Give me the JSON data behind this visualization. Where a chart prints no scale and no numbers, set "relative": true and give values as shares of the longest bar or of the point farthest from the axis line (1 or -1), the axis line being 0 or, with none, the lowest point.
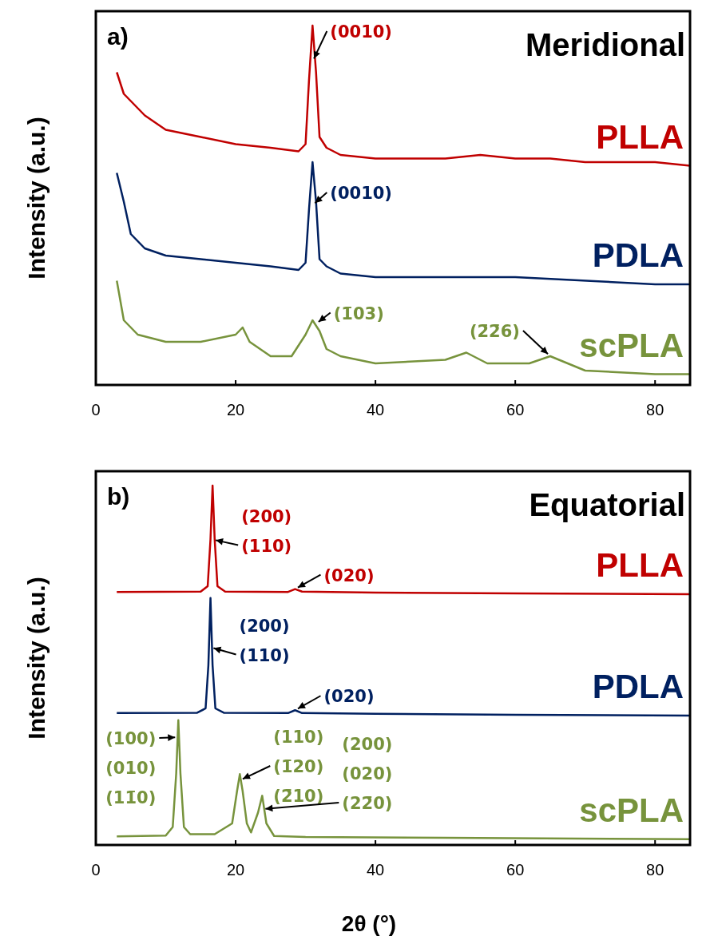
{
  "chart_data": [
    {
      "type": "line",
      "title": "Meridional",
      "ylabel": "Intensity (a.u.)",
      "relative": true,
      "xlim": [
        0,
        85
      ],
      "xticks": [
        0,
        20,
        40,
        60,
        80
      ],
      "legend": false,
      "grid": false,
      "annotations": [
        "a)",
        {
          "text": "(0010)",
          "x": 31,
          "y": 0.9
        },
        {
          "text": "(0010)",
          "x": 31,
          "y": 0.5
        },
        {
          "text": "(1̄03)",
          "x": 31.5,
          "y": 0.17
        },
        {
          "text": "(2̄2̄6)",
          "x": 65,
          "y": 0.08
        }
      ],
      "series": [
        {
          "name": "PLLA",
          "color": "#c00000",
          "x": [
            3,
            4,
            5,
            7,
            10,
            15,
            20,
            25,
            29,
            30,
            30.5,
            31,
            31.5,
            32,
            33,
            35,
            40,
            50,
            55,
            60,
            65,
            70,
            80,
            85
          ],
          "values": [
            0.87,
            0.81,
            0.79,
            0.75,
            0.71,
            0.69,
            0.67,
            0.66,
            0.65,
            0.67,
            0.85,
            1.0,
            0.87,
            0.69,
            0.66,
            0.64,
            0.63,
            0.63,
            0.64,
            0.63,
            0.63,
            0.62,
            0.62,
            0.61
          ]
        },
        {
          "name": "PDLA",
          "color": "#002060",
          "x": [
            3,
            4,
            5,
            7,
            10,
            15,
            20,
            25,
            29,
            30,
            30.5,
            31,
            31.5,
            32,
            33,
            35,
            40,
            60,
            80,
            85
          ],
          "values": [
            0.59,
            0.51,
            0.42,
            0.38,
            0.36,
            0.35,
            0.34,
            0.33,
            0.32,
            0.34,
            0.49,
            0.62,
            0.51,
            0.35,
            0.33,
            0.31,
            0.3,
            0.3,
            0.28,
            0.28
          ]
        },
        {
          "name": "scPLA",
          "color": "#77933c",
          "x": [
            3,
            4,
            6,
            10,
            15,
            20,
            21,
            22,
            25,
            28,
            30,
            31,
            32,
            33,
            35,
            40,
            50,
            53,
            56,
            62,
            65,
            70,
            80,
            85
          ],
          "values": [
            0.29,
            0.18,
            0.14,
            0.12,
            0.12,
            0.14,
            0.16,
            0.12,
            0.08,
            0.08,
            0.14,
            0.18,
            0.15,
            0.1,
            0.08,
            0.06,
            0.07,
            0.09,
            0.06,
            0.06,
            0.08,
            0.04,
            0.03,
            0.03
          ]
        }
      ]
    },
    {
      "type": "line",
      "title": "Equatorial",
      "xlabel": "2θ (°)",
      "ylabel": "Intensity (a.u.)",
      "relative": true,
      "xlim": [
        0,
        85
      ],
      "xticks": [
        0,
        20,
        40,
        60,
        80
      ],
      "legend": false,
      "grid": false,
      "annotations": [
        "b)",
        {
          "text": "(200)\n(110)",
          "x": 16.7,
          "y": 0.85
        },
        {
          "text": "(020)",
          "x": 28.5,
          "y": 0.712
        },
        {
          "text": "(200)\n(110)",
          "x": 16.4,
          "y": 0.55
        },
        {
          "text": "(020)",
          "x": 28.5,
          "y": 0.375
        },
        {
          "text": "(100)\n(010)\n(11̄0)",
          "x": 11.8,
          "y": 0.3
        },
        {
          "text": "(110)\n(1̄20)\n(2̄10)",
          "x": 20.6,
          "y": 0.18
        },
        {
          "text": "(200)\n(020)\n(22̄0)",
          "x": 23.8,
          "y": 0.1
        }
      ],
      "series": [
        {
          "name": "PLLA",
          "color": "#c00000",
          "x": [
            3,
            15,
            16,
            16.4,
            16.7,
            17,
            17.4,
            18.5,
            27.5,
            28.5,
            29.5,
            40,
            60,
            85
          ],
          "values": [
            0.704,
            0.705,
            0.72,
            0.85,
            1.0,
            0.85,
            0.72,
            0.705,
            0.704,
            0.712,
            0.705,
            0.702,
            0.7,
            0.698
          ]
        },
        {
          "name": "PDLA",
          "color": "#002060",
          "x": [
            3,
            14.5,
            15.7,
            16.1,
            16.4,
            16.7,
            17.1,
            18.3,
            27.5,
            28.5,
            29.5,
            40,
            60,
            85
          ],
          "values": [
            0.367,
            0.368,
            0.38,
            0.5,
            0.687,
            0.5,
            0.38,
            0.368,
            0.367,
            0.375,
            0.367,
            0.365,
            0.362,
            0.36
          ]
        },
        {
          "name": "scPLA",
          "color": "#77933c",
          "x": [
            3,
            10,
            11,
            11.5,
            11.8,
            12.1,
            12.6,
            13.5,
            17,
            19.5,
            20.2,
            20.6,
            21,
            21.6,
            22.2,
            23.2,
            23.8,
            24.4,
            25.5,
            30,
            50,
            85
          ],
          "values": [
            0.024,
            0.026,
            0.05,
            0.2,
            0.347,
            0.2,
            0.05,
            0.03,
            0.03,
            0.06,
            0.15,
            0.197,
            0.15,
            0.06,
            0.035,
            0.09,
            0.137,
            0.06,
            0.025,
            0.022,
            0.02,
            0.016
          ]
        }
      ]
    }
  ]
}
